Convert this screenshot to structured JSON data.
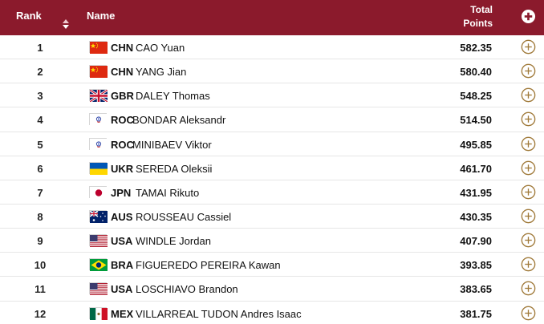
{
  "header": {
    "rank": "Rank",
    "name": "Name",
    "points_line1": "Total",
    "points_line2": "Points"
  },
  "colors": {
    "header_bg": "#8b1a2c",
    "expand_icon": "#a07a3a"
  },
  "rows": [
    {
      "rank": "1",
      "noc": "CHN",
      "athlete": "CAO Yuan",
      "points": "582.35",
      "flag": "china-flag"
    },
    {
      "rank": "2",
      "noc": "CHN",
      "athlete": "YANG Jian",
      "points": "580.40",
      "flag": "china-flag"
    },
    {
      "rank": "3",
      "noc": "GBR",
      "athlete": "DALEY Thomas",
      "points": "548.25",
      "flag": "uk-flag"
    },
    {
      "rank": "4",
      "noc": "ROC",
      "athlete": "BONDAR Aleksandr",
      "points": "514.50",
      "flag": "roc-flag"
    },
    {
      "rank": "5",
      "noc": "ROC",
      "athlete": "MINIBAEV Viktor",
      "points": "495.85",
      "flag": "roc-flag"
    },
    {
      "rank": "6",
      "noc": "UKR",
      "athlete": "SEREDA Oleksii",
      "points": "461.70",
      "flag": "ukraine-flag"
    },
    {
      "rank": "7",
      "noc": "JPN",
      "athlete": "TAMAI Rikuto",
      "points": "431.95",
      "flag": "japan-flag"
    },
    {
      "rank": "8",
      "noc": "AUS",
      "athlete": "ROUSSEAU Cassiel",
      "points": "430.35",
      "flag": "australia-flag"
    },
    {
      "rank": "9",
      "noc": "USA",
      "athlete": "WINDLE Jordan",
      "points": "407.90",
      "flag": "usa-flag"
    },
    {
      "rank": "10",
      "noc": "BRA",
      "athlete": "FIGUEREDO PEREIRA Kawan",
      "points": "393.85",
      "flag": "brazil-flag"
    },
    {
      "rank": "11",
      "noc": "USA",
      "athlete": "LOSCHIAVO Brandon",
      "points": "383.65",
      "flag": "usa-flag"
    },
    {
      "rank": "12",
      "noc": "MEX",
      "athlete": "VILLARREAL TUDON Andres Isaac",
      "points": "381.75",
      "flag": "mexico-flag"
    }
  ]
}
